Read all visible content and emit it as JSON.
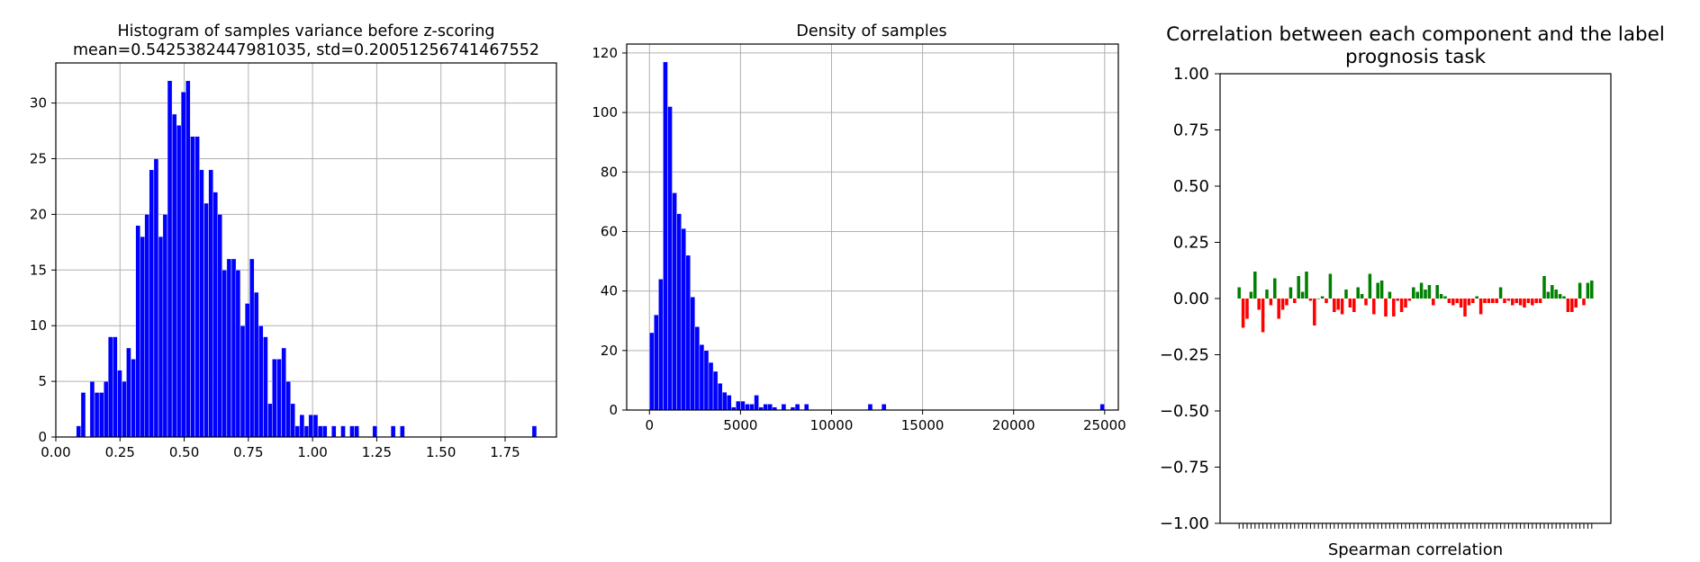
{
  "chart_data": [
    {
      "type": "bar",
      "title_line1": "Histogram of samples variance before z-scoring",
      "title_line2": "mean=0.5425382447981035, std=0.20051256741467552",
      "xlabel": "",
      "ylabel": "",
      "xlim": [
        0.0,
        1.95
      ],
      "ylim": [
        0,
        33.6
      ],
      "grid": true,
      "color": "#0000ff",
      "bin_width": 0.0177,
      "xticks": [
        "0.00",
        "0.25",
        "0.50",
        "0.75",
        "1.00",
        "1.25",
        "1.50",
        "1.75"
      ],
      "yticks": [
        "0",
        "5",
        "10",
        "15",
        "20",
        "25",
        "30"
      ],
      "bins": [
        {
          "x": 0.08,
          "value": 1
        },
        {
          "x": 0.098,
          "value": 4
        },
        {
          "x": 0.133,
          "value": 5
        },
        {
          "x": 0.151,
          "value": 4
        },
        {
          "x": 0.169,
          "value": 4
        },
        {
          "x": 0.187,
          "value": 5
        },
        {
          "x": 0.204,
          "value": 9
        },
        {
          "x": 0.222,
          "value": 9
        },
        {
          "x": 0.24,
          "value": 6
        },
        {
          "x": 0.258,
          "value": 5
        },
        {
          "x": 0.275,
          "value": 8
        },
        {
          "x": 0.293,
          "value": 7
        },
        {
          "x": 0.311,
          "value": 19
        },
        {
          "x": 0.329,
          "value": 18
        },
        {
          "x": 0.346,
          "value": 20
        },
        {
          "x": 0.364,
          "value": 24
        },
        {
          "x": 0.382,
          "value": 25
        },
        {
          "x": 0.4,
          "value": 18
        },
        {
          "x": 0.417,
          "value": 20
        },
        {
          "x": 0.435,
          "value": 32
        },
        {
          "x": 0.453,
          "value": 29
        },
        {
          "x": 0.471,
          "value": 28
        },
        {
          "x": 0.488,
          "value": 31
        },
        {
          "x": 0.506,
          "value": 32
        },
        {
          "x": 0.524,
          "value": 27
        },
        {
          "x": 0.542,
          "value": 27
        },
        {
          "x": 0.559,
          "value": 24
        },
        {
          "x": 0.577,
          "value": 21
        },
        {
          "x": 0.595,
          "value": 24
        },
        {
          "x": 0.613,
          "value": 22
        },
        {
          "x": 0.63,
          "value": 20
        },
        {
          "x": 0.648,
          "value": 15
        },
        {
          "x": 0.666,
          "value": 16
        },
        {
          "x": 0.684,
          "value": 16
        },
        {
          "x": 0.701,
          "value": 15
        },
        {
          "x": 0.719,
          "value": 10
        },
        {
          "x": 0.737,
          "value": 12
        },
        {
          "x": 0.755,
          "value": 16
        },
        {
          "x": 0.772,
          "value": 13
        },
        {
          "x": 0.79,
          "value": 10
        },
        {
          "x": 0.808,
          "value": 9
        },
        {
          "x": 0.826,
          "value": 3
        },
        {
          "x": 0.843,
          "value": 7
        },
        {
          "x": 0.861,
          "value": 7
        },
        {
          "x": 0.879,
          "value": 8
        },
        {
          "x": 0.897,
          "value": 5
        },
        {
          "x": 0.914,
          "value": 3
        },
        {
          "x": 0.932,
          "value": 1
        },
        {
          "x": 0.95,
          "value": 2
        },
        {
          "x": 0.968,
          "value": 1
        },
        {
          "x": 0.985,
          "value": 2
        },
        {
          "x": 1.003,
          "value": 2
        },
        {
          "x": 1.021,
          "value": 1
        },
        {
          "x": 1.039,
          "value": 1
        },
        {
          "x": 1.074,
          "value": 1
        },
        {
          "x": 1.11,
          "value": 1
        },
        {
          "x": 1.145,
          "value": 1
        },
        {
          "x": 1.163,
          "value": 1
        },
        {
          "x": 1.234,
          "value": 1
        },
        {
          "x": 1.305,
          "value": 1
        },
        {
          "x": 1.341,
          "value": 1
        },
        {
          "x": 1.855,
          "value": 1
        }
      ]
    },
    {
      "type": "bar",
      "title": "Density of samples",
      "xlabel": "",
      "ylabel": "",
      "xlim": [
        -1250,
        25750
      ],
      "ylim": [
        0,
        123
      ],
      "grid": true,
      "color": "#0000ff",
      "bin_width": 250,
      "xticks": [
        "0",
        "5000",
        "10000",
        "15000",
        "20000",
        "25000"
      ],
      "yticks": [
        "0",
        "20",
        "40",
        "60",
        "80",
        "100",
        "120"
      ],
      "bins": [
        {
          "x": 0,
          "value": 26
        },
        {
          "x": 250,
          "value": 32
        },
        {
          "x": 500,
          "value": 44
        },
        {
          "x": 750,
          "value": 117
        },
        {
          "x": 1000,
          "value": 102
        },
        {
          "x": 1250,
          "value": 73
        },
        {
          "x": 1500,
          "value": 66
        },
        {
          "x": 1750,
          "value": 61
        },
        {
          "x": 2000,
          "value": 52
        },
        {
          "x": 2250,
          "value": 38
        },
        {
          "x": 2500,
          "value": 28
        },
        {
          "x": 2750,
          "value": 22
        },
        {
          "x": 3000,
          "value": 20
        },
        {
          "x": 3250,
          "value": 16
        },
        {
          "x": 3500,
          "value": 13
        },
        {
          "x": 3750,
          "value": 9
        },
        {
          "x": 4000,
          "value": 6
        },
        {
          "x": 4250,
          "value": 5
        },
        {
          "x": 4500,
          "value": 1
        },
        {
          "x": 4750,
          "value": 3
        },
        {
          "x": 5000,
          "value": 3
        },
        {
          "x": 5250,
          "value": 2
        },
        {
          "x": 5500,
          "value": 2
        },
        {
          "x": 5750,
          "value": 5
        },
        {
          "x": 6000,
          "value": 1
        },
        {
          "x": 6250,
          "value": 2
        },
        {
          "x": 6500,
          "value": 2
        },
        {
          "x": 6750,
          "value": 1
        },
        {
          "x": 7250,
          "value": 2
        },
        {
          "x": 7750,
          "value": 1
        },
        {
          "x": 8000,
          "value": 2
        },
        {
          "x": 8500,
          "value": 2
        },
        {
          "x": 12000,
          "value": 2
        },
        {
          "x": 12750,
          "value": 2
        },
        {
          "x": 24750,
          "value": 2
        }
      ]
    },
    {
      "type": "bar",
      "title_line1": "Correlation between each component and the label",
      "title_line2": "prognosis task",
      "xlabel": "Spearman correlation",
      "ylabel": "",
      "ylim": [
        -1.0,
        1.0
      ],
      "grid": false,
      "positive_color": "#008000",
      "negative_color": "#ff0000",
      "yticks": [
        "1.00",
        "0.75",
        "0.50",
        "0.25",
        "0.00",
        "−0.25",
        "−0.50",
        "−0.75",
        "−1.00"
      ],
      "ytick_values": [
        1.0,
        0.75,
        0.5,
        0.25,
        0.0,
        -0.25,
        -0.5,
        -0.75,
        -1.0
      ],
      "values": [
        0.05,
        -0.13,
        -0.09,
        0.03,
        0.12,
        -0.05,
        -0.15,
        0.04,
        -0.03,
        0.09,
        -0.09,
        -0.05,
        -0.03,
        0.05,
        -0.02,
        0.1,
        0.03,
        0.12,
        -0.01,
        -0.12,
        0.0,
        0.01,
        -0.02,
        0.11,
        -0.06,
        -0.05,
        -0.07,
        0.04,
        -0.04,
        -0.06,
        0.05,
        0.02,
        -0.03,
        0.11,
        -0.07,
        0.07,
        0.08,
        -0.08,
        0.03,
        -0.08,
        -0.01,
        -0.06,
        -0.04,
        -0.01,
        0.05,
        0.03,
        0.07,
        0.04,
        0.06,
        -0.03,
        0.06,
        0.02,
        0.01,
        -0.02,
        -0.03,
        -0.02,
        -0.04,
        -0.08,
        -0.03,
        -0.02,
        0.01,
        -0.07,
        -0.02,
        -0.02,
        -0.02,
        -0.02,
        0.05,
        -0.02,
        -0.01,
        -0.03,
        -0.02,
        -0.03,
        -0.04,
        -0.02,
        -0.03,
        -0.02,
        -0.02,
        0.1,
        0.03,
        0.06,
        0.04,
        0.02,
        0.01,
        -0.06,
        -0.06,
        -0.04,
        0.07,
        -0.03,
        0.07,
        0.08
      ]
    }
  ]
}
